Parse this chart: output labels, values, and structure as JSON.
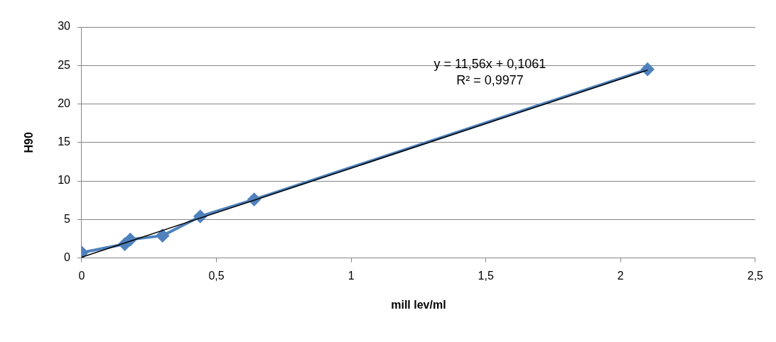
{
  "chart_data": {
    "type": "line",
    "xlabel": "mill lev/ml",
    "ylabel": "H90",
    "xlim": [
      0,
      2.5
    ],
    "xticks": [
      0,
      {
        "value": 0.5,
        "label": "0,5"
      },
      1,
      {
        "value": 1.5,
        "label": "1,5"
      },
      2,
      {
        "value": 2.5,
        "label": "2,5"
      }
    ],
    "ylim": [
      0,
      30
    ],
    "yticks": [
      0,
      5,
      10,
      15,
      20,
      25,
      30
    ],
    "grid": "y",
    "legend": false,
    "marker": "diamond",
    "series": [
      {
        "color": "#4f81bd",
        "x": [
          0,
          0.16,
          0.18,
          0.3,
          0.44,
          0.64,
          2.1
        ],
        "values": [
          0.7,
          1.8,
          2.4,
          2.9,
          5.4,
          7.6,
          24.5
        ]
      },
      {
        "type": "line",
        "color": "#000000",
        "marker": "none",
        "x": [
          0,
          2.1
        ],
        "values": [
          0.1,
          24.4
        ]
      }
    ],
    "annotations": [
      "y = 11,56x + 0,1061",
      "R² = 0,9977"
    ]
  }
}
